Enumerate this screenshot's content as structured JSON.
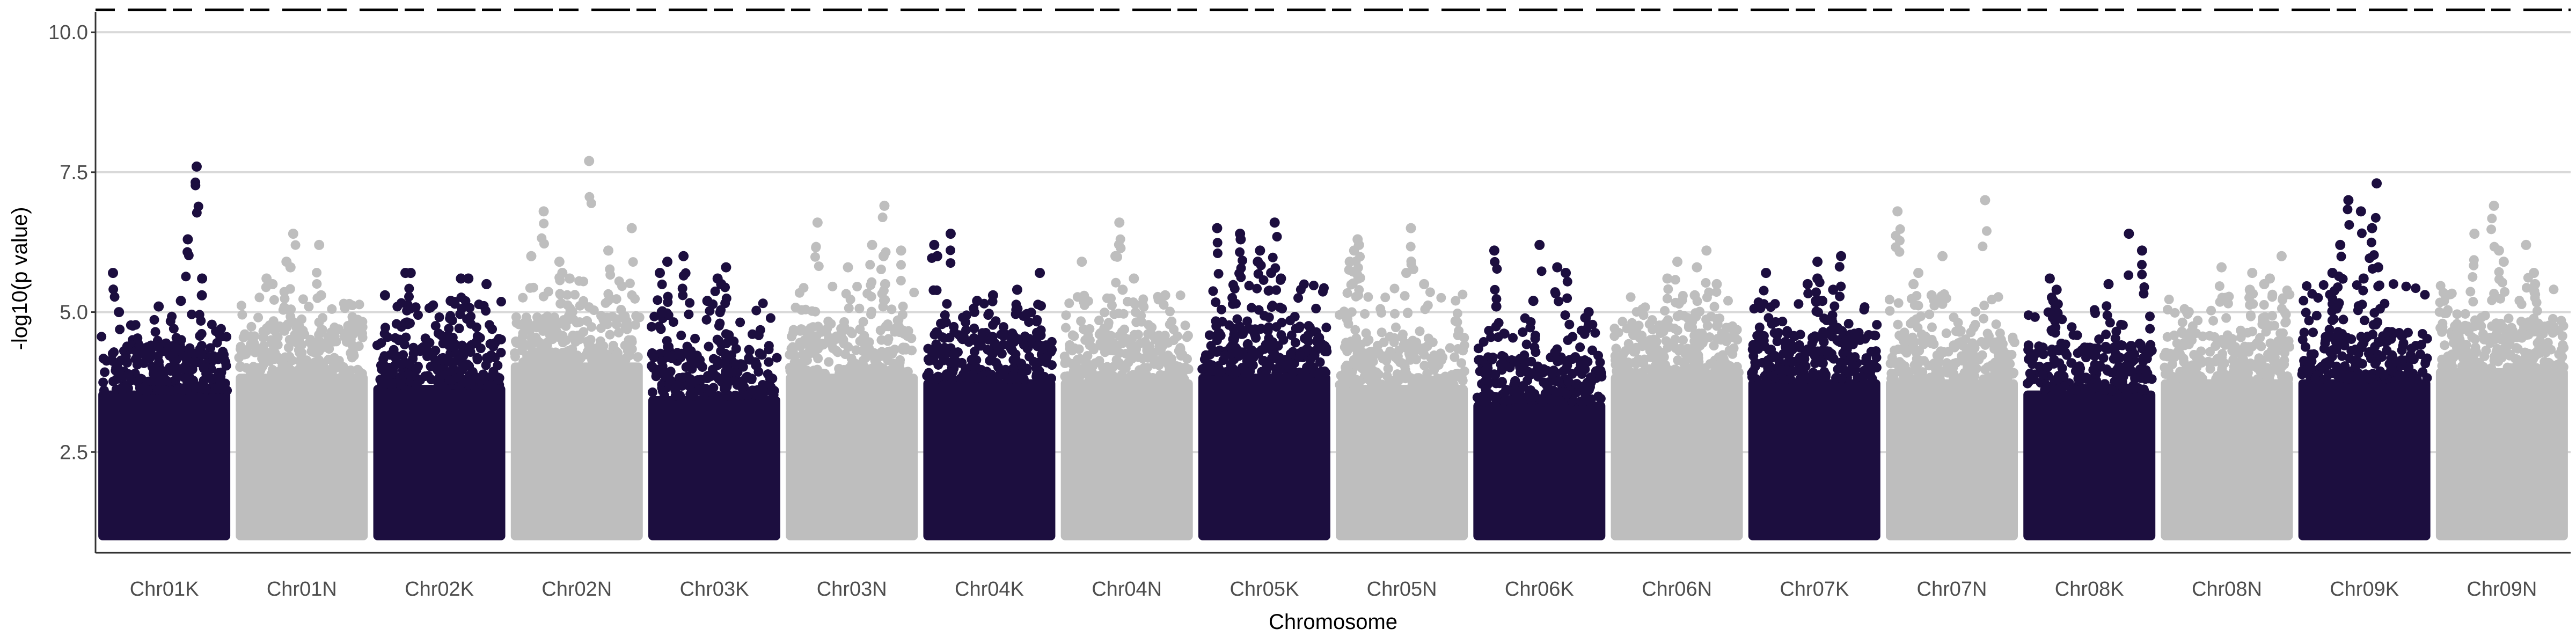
{
  "chart_data": {
    "type": "scatter",
    "subtype": "manhattan",
    "title": "",
    "xlabel": "Chromosome",
    "ylabel": "-log10(p value)",
    "ylim": [
      0.7,
      10.5
    ],
    "yticks": [
      2.5,
      5.0,
      7.5,
      10.0
    ],
    "ytick_labels": [
      "2.5",
      "5.0",
      "7.5",
      "10.0"
    ],
    "grid": "horizontal major lines",
    "background": "#ffffff",
    "colors": {
      "odd": "#1c0e3f",
      "even": "#bebebe",
      "grid": "#d9d9d9",
      "axis": "#333333",
      "threshold": "#000000"
    },
    "threshold_lines": [
      {
        "y": 10.4,
        "style": "dashed"
      }
    ],
    "categories": [
      "Chr01K",
      "Chr01N",
      "Chr02K",
      "Chr02N",
      "Chr03K",
      "Chr03N",
      "Chr04K",
      "Chr04N",
      "Chr05K",
      "Chr05N",
      "Chr06K",
      "Chr06N",
      "Chr07K",
      "Chr07N",
      "Chr08K",
      "Chr08N",
      "Chr09K",
      "Chr09N"
    ],
    "series": [
      {
        "category": "Chr01K",
        "y_min": 1.0,
        "dense_top": 4.2,
        "max": 7.6,
        "top_points": [
          7.6,
          6.3,
          5.7,
          5.6,
          5.3,
          5.2,
          5.1,
          5.0
        ]
      },
      {
        "category": "Chr01N",
        "y_min": 1.0,
        "dense_top": 4.5,
        "max": 6.4,
        "top_points": [
          6.4,
          6.2,
          5.9,
          5.8,
          5.6,
          5.5,
          5.3
        ]
      },
      {
        "category": "Chr02K",
        "y_min": 1.0,
        "dense_top": 4.3,
        "max": 5.7,
        "top_points": [
          5.7,
          5.7,
          5.6,
          5.6,
          5.5,
          5.3,
          5.2
        ]
      },
      {
        "category": "Chr02N",
        "y_min": 1.0,
        "dense_top": 4.7,
        "max": 7.7,
        "top_points": [
          7.7,
          6.8,
          6.5,
          6.1,
          6.0,
          5.9,
          5.7,
          5.6
        ]
      },
      {
        "category": "Chr03K",
        "y_min": 1.0,
        "dense_top": 4.1,
        "max": 6.0,
        "top_points": [
          6.0,
          5.9,
          5.8,
          5.7,
          5.6,
          5.5,
          5.2
        ]
      },
      {
        "category": "Chr03N",
        "y_min": 1.0,
        "dense_top": 4.5,
        "max": 6.9,
        "top_points": [
          6.9,
          6.6,
          6.2,
          6.1,
          6.0,
          5.8,
          5.5
        ]
      },
      {
        "category": "Chr04K",
        "y_min": 1.0,
        "dense_top": 4.4,
        "max": 6.4,
        "top_points": [
          6.4,
          6.2,
          6.0,
          5.7,
          5.4,
          5.3,
          5.2
        ]
      },
      {
        "category": "Chr04N",
        "y_min": 1.0,
        "dense_top": 4.4,
        "max": 6.6,
        "top_points": [
          6.6,
          6.0,
          5.9,
          5.6,
          5.4,
          5.3
        ]
      },
      {
        "category": "Chr05K",
        "y_min": 1.0,
        "dense_top": 4.5,
        "max": 6.6,
        "top_points": [
          6.6,
          6.5,
          6.4,
          6.3,
          6.1,
          5.9,
          5.7,
          5.6
        ]
      },
      {
        "category": "Chr05N",
        "y_min": 1.0,
        "dense_top": 4.3,
        "max": 6.5,
        "top_points": [
          6.5,
          6.3,
          6.2,
          6.1,
          5.9,
          5.7,
          5.5
        ]
      },
      {
        "category": "Chr06K",
        "y_min": 1.0,
        "dense_top": 4.0,
        "max": 6.2,
        "top_points": [
          6.2,
          6.1,
          5.8,
          5.7,
          5.2,
          5.1,
          5.0
        ]
      },
      {
        "category": "Chr06N",
        "y_min": 1.0,
        "dense_top": 4.5,
        "max": 6.1,
        "top_points": [
          6.1,
          5.9,
          5.8,
          5.6,
          5.5,
          5.3
        ]
      },
      {
        "category": "Chr07K",
        "y_min": 1.0,
        "dense_top": 4.4,
        "max": 6.0,
        "top_points": [
          6.0,
          5.9,
          5.7,
          5.6,
          5.5,
          5.4,
          5.2
        ]
      },
      {
        "category": "Chr07N",
        "y_min": 1.0,
        "dense_top": 4.4,
        "max": 7.0,
        "top_points": [
          7.0,
          6.8,
          6.0,
          5.7,
          5.5,
          5.3
        ]
      },
      {
        "category": "Chr08K",
        "y_min": 1.0,
        "dense_top": 4.2,
        "max": 6.4,
        "top_points": [
          6.4,
          6.1,
          5.6,
          5.5,
          5.4,
          5.2,
          5.1
        ]
      },
      {
        "category": "Chr08N",
        "y_min": 1.0,
        "dense_top": 4.4,
        "max": 6.0,
        "top_points": [
          6.0,
          5.8,
          5.7,
          5.6,
          5.5,
          5.4
        ]
      },
      {
        "category": "Chr09K",
        "y_min": 1.0,
        "dense_top": 4.4,
        "max": 7.3,
        "top_points": [
          7.3,
          7.0,
          6.8,
          6.5,
          6.2,
          5.8,
          5.7,
          5.6
        ]
      },
      {
        "category": "Chr09N",
        "y_min": 1.0,
        "dense_top": 4.6,
        "max": 6.9,
        "top_points": [
          6.9,
          6.4,
          6.2,
          6.1,
          5.9,
          5.7,
          5.5
        ]
      }
    ]
  }
}
